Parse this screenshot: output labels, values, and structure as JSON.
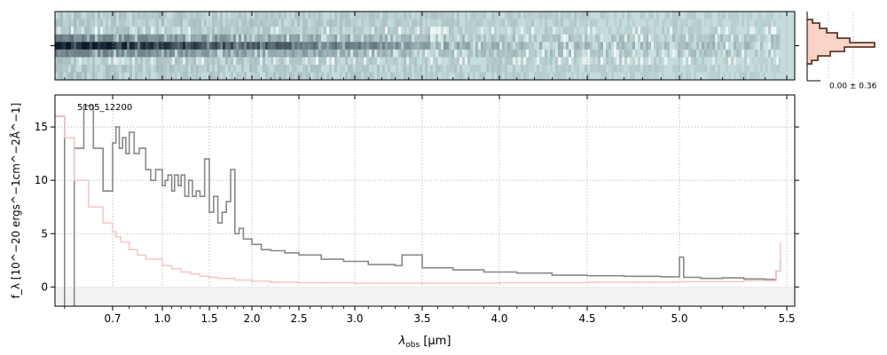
{
  "colors": {
    "spectrum": "#888888",
    "uncertainty": "#f4c2c2",
    "panel_bg": "#c5dcdc",
    "trace": "#0b1a2a",
    "histogram_fill": "#f9d3c5",
    "histogram_line": "#5b3a2e",
    "grid": "#b5b5b5"
  },
  "chart_data": [
    {
      "type": "heatmap",
      "name": "2D spectrum",
      "xlim": [
        0.58,
        5.53
      ],
      "rows": 9,
      "trace_row": 4,
      "trace_extent": [
        0.58,
        5.47
      ]
    },
    {
      "type": "histogram",
      "name": "pixel distribution",
      "annotation": "0.00 ± 0.36"
    },
    {
      "type": "line",
      "object_label": "5105_12200",
      "xlabel_base": "λ",
      "xlabel_sub": "obs",
      "xlabel_unit": " [μm]",
      "ylabel_text": "f_λ [10^−20 ergs^−1cm^−2Å^−1]",
      "ylim": [
        -1.8,
        18
      ],
      "xticks": [
        0.7,
        1.0,
        1.5,
        2.0,
        2.5,
        3.0,
        3.5,
        4.0,
        4.5,
        5.0,
        5.5
      ],
      "xtick_labels": [
        "0.7",
        "1.0",
        "1.5",
        "2.0",
        "2.5",
        "3.0",
        "3.5",
        "4.0",
        "4.5",
        "5.0",
        "5.5"
      ],
      "yticks": [
        0,
        5,
        10,
        15
      ],
      "ytick_labels": [
        "0",
        "5",
        "10",
        "15"
      ],
      "grid": true,
      "series": [
        {
          "role": "flux",
          "x": [
            0.58,
            0.6,
            0.62,
            0.64,
            0.66,
            0.68,
            0.7,
            0.72,
            0.74,
            0.76,
            0.78,
            0.8,
            0.83,
            0.86,
            0.9,
            0.93,
            0.96,
            1.0,
            1.03,
            1.06,
            1.1,
            1.13,
            1.17,
            1.2,
            1.24,
            1.28,
            1.32,
            1.36,
            1.4,
            1.45,
            1.5,
            1.55,
            1.6,
            1.65,
            1.7,
            1.75,
            1.8,
            1.85,
            1.9,
            2.0,
            2.1,
            2.2,
            2.35,
            2.5,
            2.7,
            2.9,
            3.1,
            3.3,
            3.35,
            3.5,
            3.7,
            3.9,
            4.1,
            4.3,
            4.5,
            4.7,
            4.9,
            5.0,
            5.02,
            5.1,
            5.2,
            5.3,
            5.4,
            5.45,
            5.47
          ],
          "y": [
            16,
            -2,
            13,
            17,
            13,
            9,
            13.5,
            15,
            13,
            14,
            12.5,
            14.5,
            12.5,
            13,
            11,
            10,
            11,
            9.5,
            10,
            10.5,
            9,
            10.5,
            9.5,
            10.5,
            8.5,
            10,
            8.5,
            9,
            8.5,
            12,
            7,
            8.5,
            6,
            7,
            8,
            11,
            5,
            5.5,
            4.5,
            4,
            3.5,
            3.4,
            3.2,
            3.0,
            2.6,
            2.4,
            2.1,
            2.0,
            3.0,
            1.8,
            1.6,
            1.4,
            1.3,
            1.1,
            1.05,
            1.0,
            0.95,
            2.8,
            0.9,
            0.8,
            0.85,
            0.75,
            0.7,
            1.5,
            2.5
          ]
        },
        {
          "role": "uncertainty",
          "x": [
            0.58,
            0.6,
            0.62,
            0.65,
            0.68,
            0.7,
            0.72,
            0.75,
            0.8,
            0.85,
            0.9,
            1.0,
            1.1,
            1.2,
            1.3,
            1.4,
            1.5,
            1.6,
            1.8,
            2.0,
            2.2,
            2.5,
            3.0,
            3.5,
            4.0,
            4.5,
            5.0,
            5.3,
            5.45,
            5.47
          ],
          "y": [
            16,
            14,
            10,
            7.5,
            6,
            5.2,
            4.7,
            4.2,
            3.5,
            3.0,
            2.6,
            2.0,
            1.7,
            1.4,
            1.2,
            1.0,
            0.9,
            0.8,
            0.65,
            0.55,
            0.45,
            0.4,
            0.35,
            0.35,
            0.4,
            0.45,
            0.5,
            0.6,
            1.5,
            4.2
          ]
        }
      ]
    }
  ]
}
